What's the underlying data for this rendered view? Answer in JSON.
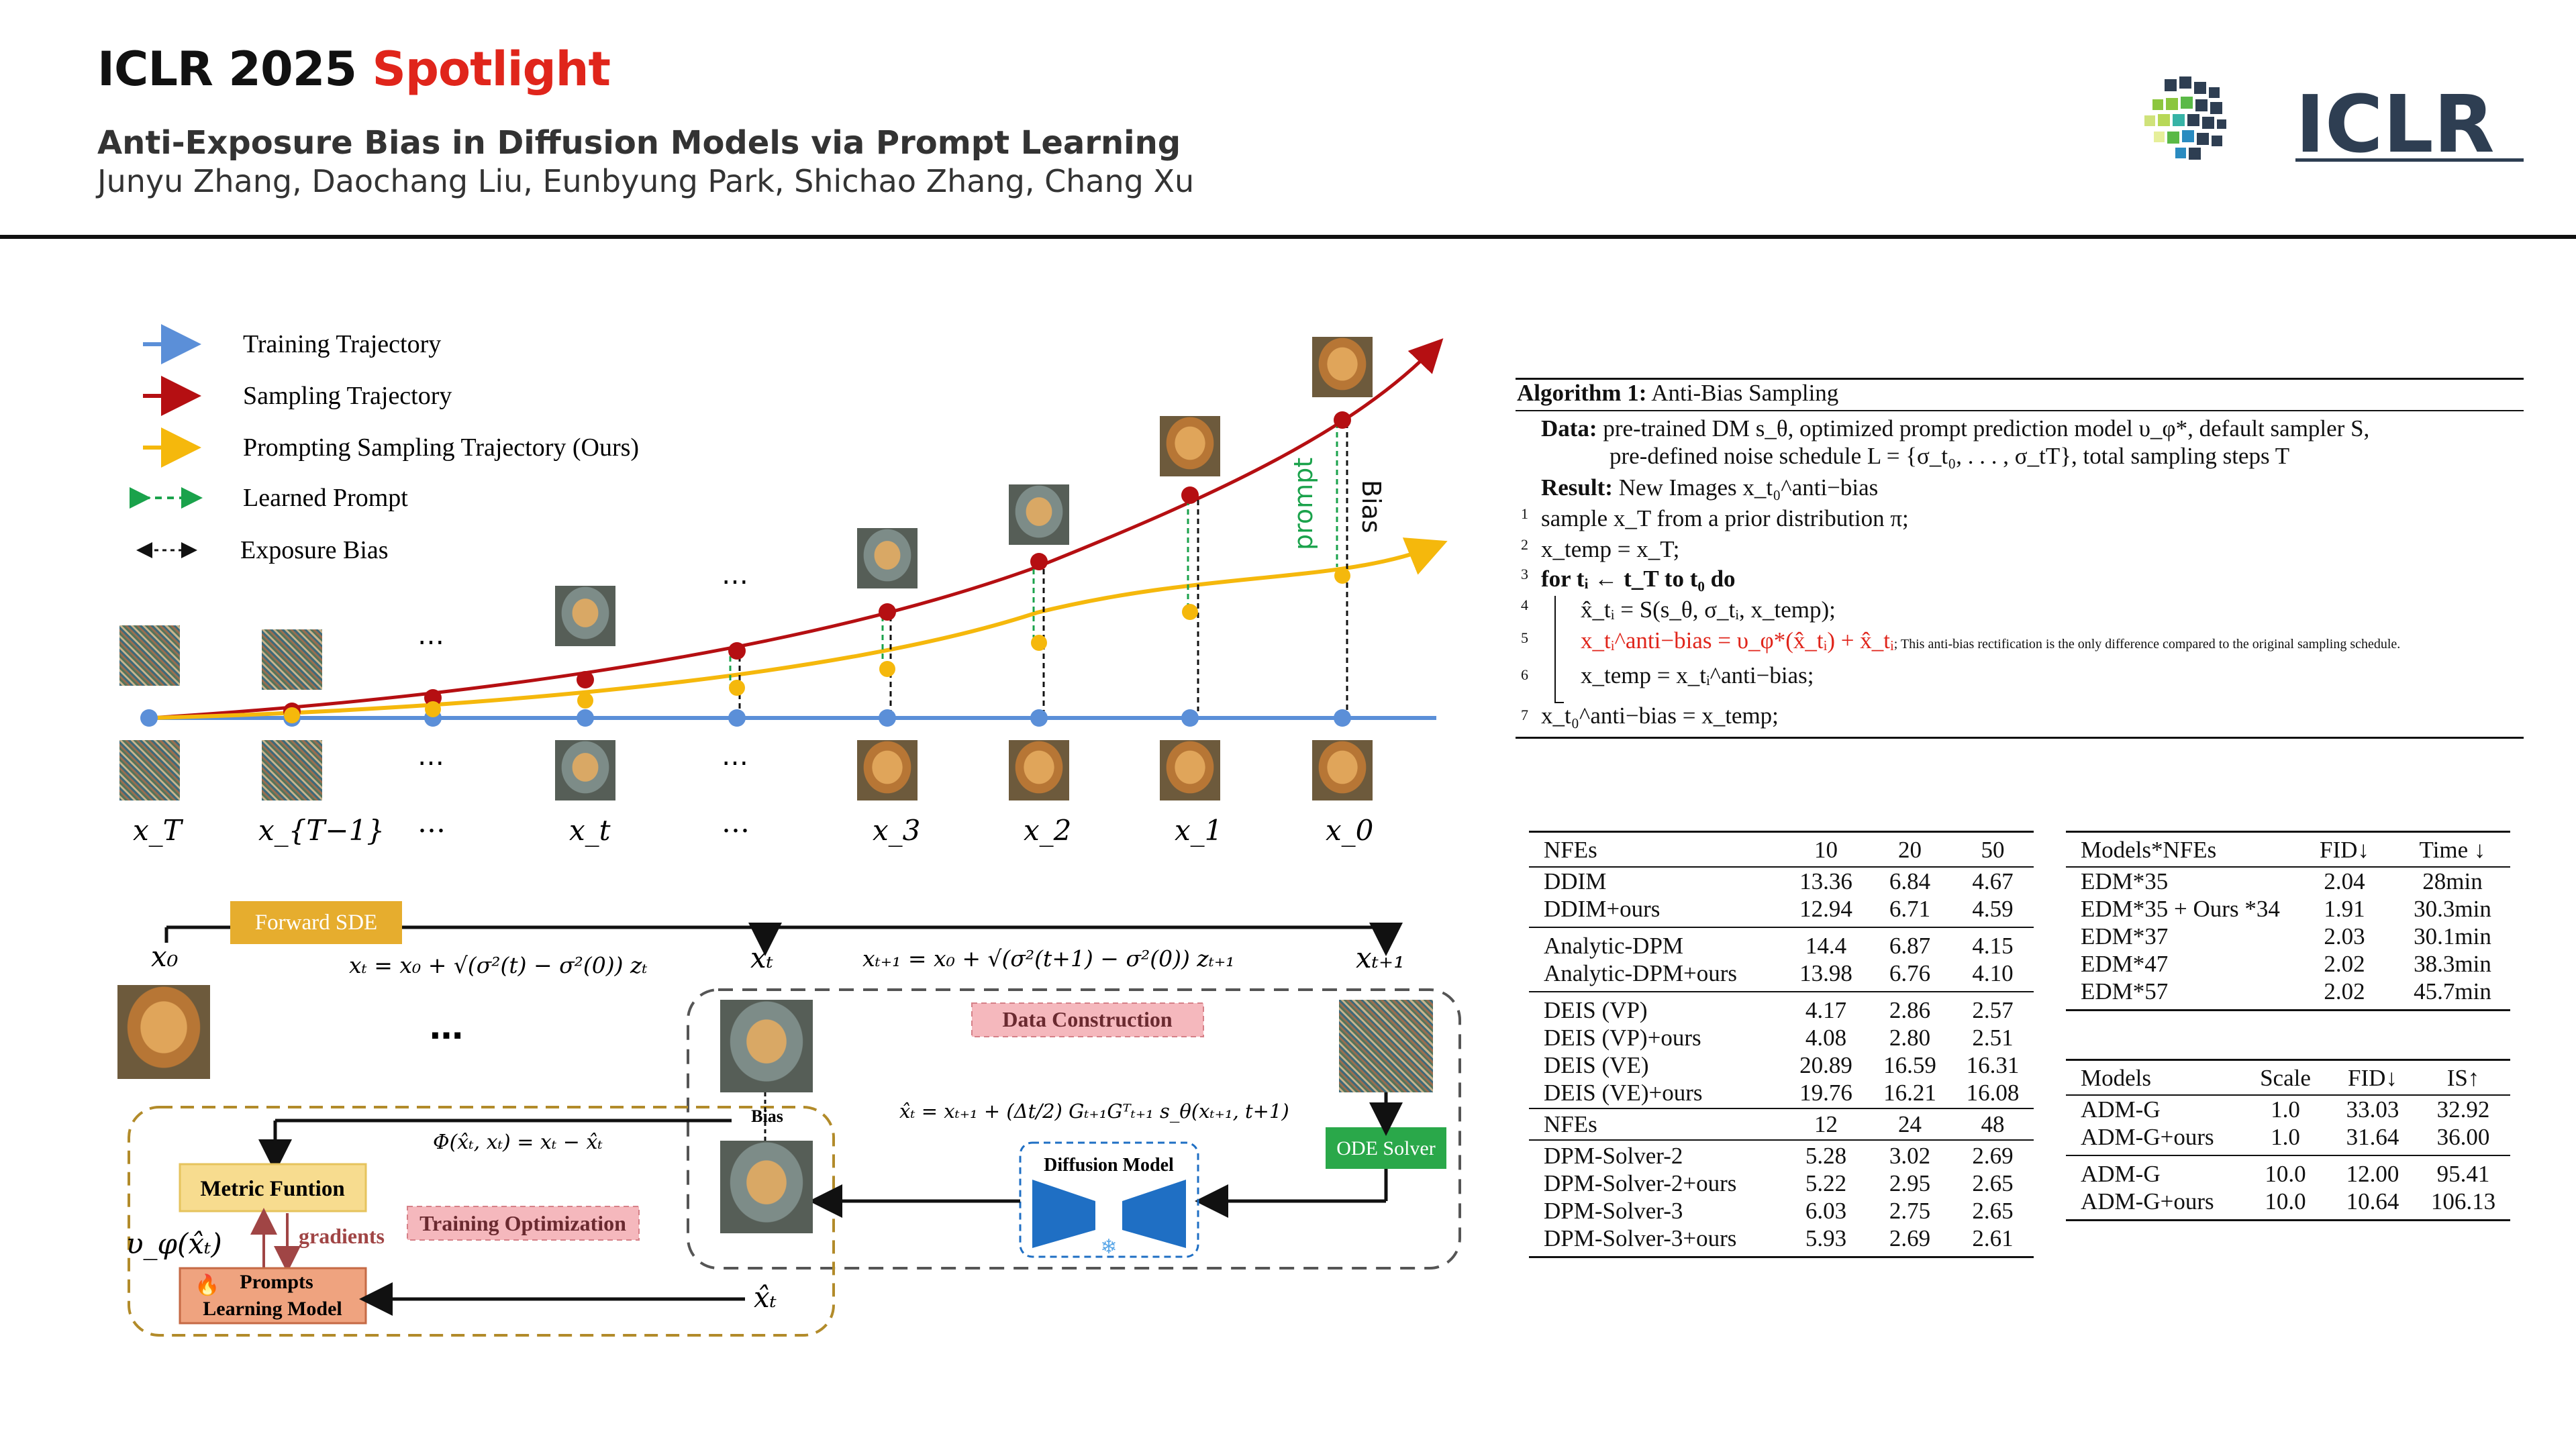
{
  "header": {
    "conference": "ICLR 2025",
    "spotlight": "Spotlight",
    "title": "Anti-Exposure Bias in Diffusion Models via Prompt Learning",
    "authors": "Junyu Zhang, Daochang Liu, Eunbyung Park, Shichao Zhang, Chang Xu",
    "logo_text": "ICLR"
  },
  "legend": {
    "training": "Training Trajectory",
    "sampling": "Sampling Trajectory",
    "prompting": "Prompting Sampling Trajectory (Ours)",
    "learned": "Learned Prompt",
    "exposure": "Exposure Bias"
  },
  "trajectory_labels": {
    "xT": "x_T",
    "xT1": "x_{T−1}",
    "xt": "x_t",
    "x3": "x_3",
    "x2": "x_2",
    "x1": "x_1",
    "x0": "x_0",
    "ellipsis": "…",
    "prompt": "prompt",
    "bias": "Bias"
  },
  "colors": {
    "training": "#5b8fd8",
    "sampling": "#b50f12",
    "prompting": "#f5b80c",
    "learned": "#1aa24b",
    "exposure": "#111111",
    "forward_sde": "#e6ad2e",
    "ode_solver": "#2aa84a",
    "diffusion": "#1f6fc4",
    "data_construction": "#f5b8bd",
    "training_opt": "#f5b8bd",
    "metric_box": "#f7dc8f",
    "prompts_box": "#efa37f",
    "gradients": "#a04545",
    "accent_red": "#e0251b"
  },
  "pipeline": {
    "forward_sde": "Forward SDE",
    "x0": "x₀",
    "xt": "xₜ",
    "xt1": "xₜ₊₁",
    "xhat": "x̂ₜ",
    "eq_forward1": "xₜ = x₀ + √(σ²(t) − σ²(0)) zₜ",
    "eq_forward2": "xₜ₊₁ = x₀ + √(σ²(t+1) − σ²(0)) zₜ₊₁",
    "eq_phi": "Φ(x̂ₜ, xₜ) = xₜ − x̂ₜ",
    "eq_ode": "x̂ₜ = xₜ₊₁ + (Δt/2) Gₜ₊₁Gᵀₜ₊₁ s_θ(xₜ₊₁, t+1)",
    "dots": "…",
    "data_construction": "Data Construction",
    "bias": "Bias",
    "ode_solver": "ODE Solver",
    "diffusion_model": "Diffusion Model",
    "metric_function": "Metric Funtion",
    "upsilon": "υ_φ(x̂ₜ)",
    "gradients": "gradients",
    "training_optimization": "Training Optimization",
    "prompts_line1": "Prompts",
    "prompts_line2": "Learning Model"
  },
  "algorithm": {
    "title_bold": "Algorithm 1:",
    "title": "Anti-Bias Sampling",
    "data_label": "Data:",
    "data_line1": "pre-trained DM s_θ, optimized prompt prediction model υ_φ*, default sampler S,",
    "data_line2": "pre-defined noise schedule L = {σ_t₀, . . . , σ_tT}, total sampling steps T",
    "result_label": "Result:",
    "result": "New Images x_t₀^anti−bias",
    "lines": [
      {
        "n": "1",
        "text": "sample x_T from a prior distribution π;"
      },
      {
        "n": "2",
        "text": "x_temp = x_T;"
      },
      {
        "n": "3",
        "text": "for tᵢ ← t_T to t₀ do"
      },
      {
        "n": "4",
        "text": "x̂_tᵢ = S(s_θ, σ_tᵢ, x_temp);"
      },
      {
        "n": "5",
        "text": "x_tᵢ^anti−bias = υ_φ*(x̂_tᵢ) + x̂_tᵢ",
        "note": "; This anti-bias rectification is the only difference compared to the original sampling schedule."
      },
      {
        "n": "6",
        "text": "x_temp = x_tᵢ^anti−bias;"
      },
      {
        "n": "7",
        "text": "x_t₀^anti−bias = x_temp;"
      }
    ]
  },
  "table1": {
    "header1": [
      "NFEs",
      "10",
      "20",
      "50"
    ],
    "group1": [
      [
        "DDIM",
        "13.36",
        "6.84",
        "4.67"
      ],
      [
        "DDIM+ours",
        "12.94",
        "6.71",
        "4.59"
      ]
    ],
    "group2": [
      [
        "Analytic-DPM",
        "14.4",
        "6.87",
        "4.15"
      ],
      [
        "Analytic-DPM+ours",
        "13.98",
        "6.76",
        "4.10"
      ]
    ],
    "group3": [
      [
        "DEIS (VP)",
        "4.17",
        "2.86",
        "2.57"
      ],
      [
        "DEIS (VP)+ours",
        "4.08",
        "2.80",
        "2.51"
      ],
      [
        "DEIS (VE)",
        "20.89",
        "16.59",
        "16.31"
      ],
      [
        "DEIS (VE)+ours",
        "19.76",
        "16.21",
        "16.08"
      ]
    ],
    "header2": [
      "NFEs",
      "12",
      "24",
      "48"
    ],
    "group4": [
      [
        "DPM-Solver-2",
        "5.28",
        "3.02",
        "2.69"
      ],
      [
        "DPM-Solver-2+ours",
        "5.22",
        "2.95",
        "2.65"
      ],
      [
        "DPM-Solver-3",
        "6.03",
        "2.75",
        "2.65"
      ],
      [
        "DPM-Solver-3+ours",
        "5.93",
        "2.69",
        "2.61"
      ]
    ]
  },
  "table2": {
    "header": [
      "Models*NFEs",
      "FID↓",
      "Time ↓"
    ],
    "rows": [
      [
        "EDM*35",
        "2.04",
        "28min"
      ],
      [
        "EDM*35 + Ours *34",
        "1.91",
        "30.3min"
      ],
      [
        "EDM*37",
        "2.03",
        "30.1min"
      ],
      [
        "EDM*47",
        "2.02",
        "38.3min"
      ],
      [
        "EDM*57",
        "2.02",
        "45.7min"
      ]
    ]
  },
  "table3": {
    "header": [
      "Models",
      "Scale",
      "FID↓",
      "IS↑"
    ],
    "group1": [
      [
        "ADM-G",
        "1.0",
        "33.03",
        "32.92"
      ],
      [
        "ADM-G+ours",
        "1.0",
        "31.64",
        "36.00"
      ]
    ],
    "group2": [
      [
        "ADM-G",
        "10.0",
        "12.00",
        "95.41"
      ],
      [
        "ADM-G+ours",
        "10.0",
        "10.64",
        "106.13"
      ]
    ]
  }
}
